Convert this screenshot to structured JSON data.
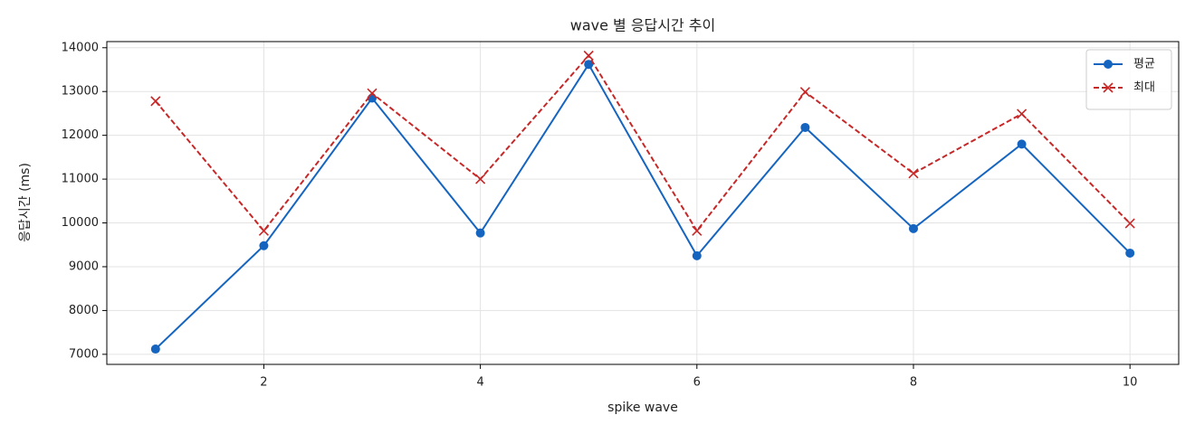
{
  "chart_data": {
    "type": "line",
    "title": "wave 별 응답시간 추이",
    "xlabel": "spike wave",
    "ylabel": "응답시간 (ms)",
    "x": [
      1,
      2,
      3,
      4,
      5,
      6,
      7,
      8,
      9,
      10
    ],
    "series": [
      {
        "name": "평균",
        "color": "#1565c0",
        "marker": "o",
        "linestyle": "solid",
        "values": [
          7120,
          9480,
          12850,
          9770,
          13620,
          9250,
          12180,
          9870,
          11800,
          9310
        ]
      },
      {
        "name": "최대",
        "color": "#c62828",
        "marker": "x",
        "linestyle": "dashed",
        "values": [
          12780,
          9820,
          12960,
          11000,
          13820,
          9820,
          12990,
          11130,
          12490,
          9990
        ]
      }
    ],
    "xlim": [
      0.55,
      10.45
    ],
    "xticks": [
      2,
      4,
      6,
      8,
      10
    ],
    "ylim": [
      6770,
      14140
    ],
    "yticks": [
      7000,
      8000,
      9000,
      10000,
      11000,
      12000,
      13000,
      14000
    ],
    "grid": true,
    "legend": "upper right"
  }
}
